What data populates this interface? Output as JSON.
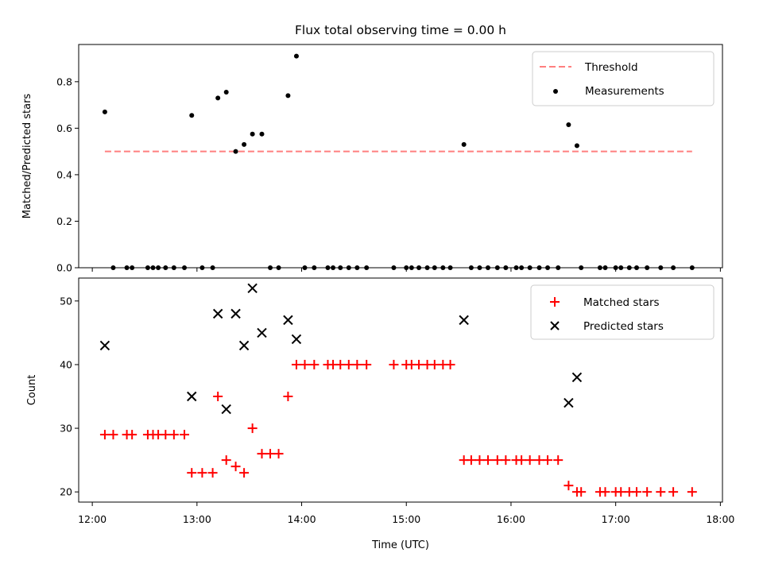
{
  "chart_data": [
    {
      "type": "scatter",
      "title": "Flux total observing time = 0.00 h",
      "xlabel": "",
      "ylabel": "Matched/Predicted stars",
      "xlim_hours": [
        11.87,
        18.02
      ],
      "ylim": [
        0,
        0.96
      ],
      "yticks": [
        "0.0",
        "0.2",
        "0.4",
        "0.6",
        "0.8"
      ],
      "grid": false,
      "legend": "top-right",
      "threshold": {
        "name": "Threshold",
        "value": 0.5,
        "x_range": [
          12.12,
          17.73
        ],
        "color": "#ff7f7f"
      },
      "series": [
        {
          "name": "Measurements",
          "color": "#000000",
          "points": [
            [
              12.12,
              0.67
            ],
            [
              12.2,
              0
            ],
            [
              12.33,
              0
            ],
            [
              12.38,
              0
            ],
            [
              12.53,
              0
            ],
            [
              12.58,
              0
            ],
            [
              12.63,
              0
            ],
            [
              12.7,
              0
            ],
            [
              12.78,
              0
            ],
            [
              12.88,
              0
            ],
            [
              12.95,
              0.655
            ],
            [
              13.05,
              0
            ],
            [
              13.15,
              0
            ],
            [
              13.2,
              0.73
            ],
            [
              13.28,
              0.755
            ],
            [
              13.37,
              0.5
            ],
            [
              13.45,
              0.53
            ],
            [
              13.53,
              0.575
            ],
            [
              13.62,
              0.575
            ],
            [
              13.7,
              0
            ],
            [
              13.78,
              0
            ],
            [
              13.87,
              0.74
            ],
            [
              13.95,
              0.91
            ],
            [
              14.03,
              0
            ],
            [
              14.12,
              0
            ],
            [
              14.25,
              0
            ],
            [
              14.3,
              0
            ],
            [
              14.37,
              0
            ],
            [
              14.45,
              0
            ],
            [
              14.53,
              0
            ],
            [
              14.62,
              0
            ],
            [
              14.88,
              0
            ],
            [
              15.0,
              0
            ],
            [
              15.05,
              0
            ],
            [
              15.12,
              0
            ],
            [
              15.2,
              0
            ],
            [
              15.27,
              0
            ],
            [
              15.35,
              0
            ],
            [
              15.42,
              0
            ],
            [
              15.55,
              0.53
            ],
            [
              15.62,
              0
            ],
            [
              15.7,
              0
            ],
            [
              15.78,
              0
            ],
            [
              15.87,
              0
            ],
            [
              15.95,
              0
            ],
            [
              16.05,
              0
            ],
            [
              16.1,
              0
            ],
            [
              16.18,
              0
            ],
            [
              16.27,
              0
            ],
            [
              16.35,
              0
            ],
            [
              16.45,
              0
            ],
            [
              16.55,
              0.615
            ],
            [
              16.63,
              0.525
            ],
            [
              16.67,
              0
            ],
            [
              16.85,
              0
            ],
            [
              16.9,
              0
            ],
            [
              17.0,
              0
            ],
            [
              17.05,
              0
            ],
            [
              17.13,
              0
            ],
            [
              17.2,
              0
            ],
            [
              17.3,
              0
            ],
            [
              17.43,
              0
            ],
            [
              17.55,
              0
            ],
            [
              17.73,
              0
            ]
          ]
        }
      ]
    },
    {
      "type": "scatter",
      "title": "",
      "xlabel": "Time (UTC)",
      "ylabel": "Count",
      "xlim_hours": [
        11.87,
        18.02
      ],
      "xticks": [
        {
          "value": 12,
          "label": "12:00"
        },
        {
          "value": 13,
          "label": "13:00"
        },
        {
          "value": 14,
          "label": "14:00"
        },
        {
          "value": 15,
          "label": "15:00"
        },
        {
          "value": 16,
          "label": "16:00"
        },
        {
          "value": 17,
          "label": "17:00"
        },
        {
          "value": 18,
          "label": "18:00"
        }
      ],
      "ylim": [
        18.4,
        53.6
      ],
      "yticks": [
        "20",
        "30",
        "40",
        "50"
      ],
      "grid": false,
      "legend": "top-right",
      "series": [
        {
          "name": "Matched stars",
          "color": "#ff0000",
          "marker": "plus",
          "points": [
            [
              12.12,
              29
            ],
            [
              12.2,
              29
            ],
            [
              12.33,
              29
            ],
            [
              12.38,
              29
            ],
            [
              12.53,
              29
            ],
            [
              12.58,
              29
            ],
            [
              12.63,
              29
            ],
            [
              12.7,
              29
            ],
            [
              12.78,
              29
            ],
            [
              12.88,
              29
            ],
            [
              12.95,
              23
            ],
            [
              13.05,
              23
            ],
            [
              13.15,
              23
            ],
            [
              13.2,
              35
            ],
            [
              13.28,
              25
            ],
            [
              13.37,
              24
            ],
            [
              13.45,
              23
            ],
            [
              13.53,
              30
            ],
            [
              13.62,
              26
            ],
            [
              13.7,
              26
            ],
            [
              13.78,
              26
            ],
            [
              13.87,
              35
            ],
            [
              13.95,
              40
            ],
            [
              14.03,
              40
            ],
            [
              14.12,
              40
            ],
            [
              14.25,
              40
            ],
            [
              14.3,
              40
            ],
            [
              14.37,
              40
            ],
            [
              14.45,
              40
            ],
            [
              14.53,
              40
            ],
            [
              14.62,
              40
            ],
            [
              14.88,
              40
            ],
            [
              15.0,
              40
            ],
            [
              15.05,
              40
            ],
            [
              15.12,
              40
            ],
            [
              15.2,
              40
            ],
            [
              15.27,
              40
            ],
            [
              15.35,
              40
            ],
            [
              15.42,
              40
            ],
            [
              15.55,
              25
            ],
            [
              15.62,
              25
            ],
            [
              15.7,
              25
            ],
            [
              15.78,
              25
            ],
            [
              15.87,
              25
            ],
            [
              15.95,
              25
            ],
            [
              16.05,
              25
            ],
            [
              16.1,
              25
            ],
            [
              16.18,
              25
            ],
            [
              16.27,
              25
            ],
            [
              16.35,
              25
            ],
            [
              16.45,
              25
            ],
            [
              16.55,
              21
            ],
            [
              16.63,
              20
            ],
            [
              16.67,
              20
            ],
            [
              16.85,
              20
            ],
            [
              16.9,
              20
            ],
            [
              17.0,
              20
            ],
            [
              17.05,
              20
            ],
            [
              17.13,
              20
            ],
            [
              17.2,
              20
            ],
            [
              17.3,
              20
            ],
            [
              17.43,
              20
            ],
            [
              17.55,
              20
            ],
            [
              17.73,
              20
            ]
          ]
        },
        {
          "name": "Predicted stars",
          "color": "#000000",
          "marker": "x",
          "points": [
            [
              12.12,
              43
            ],
            [
              12.95,
              35
            ],
            [
              13.2,
              48
            ],
            [
              13.28,
              33
            ],
            [
              13.37,
              48
            ],
            [
              13.45,
              43
            ],
            [
              13.53,
              52
            ],
            [
              13.62,
              45
            ],
            [
              13.87,
              47
            ],
            [
              13.95,
              44
            ],
            [
              15.55,
              47
            ],
            [
              16.55,
              34
            ],
            [
              16.63,
              38
            ]
          ]
        }
      ]
    }
  ]
}
